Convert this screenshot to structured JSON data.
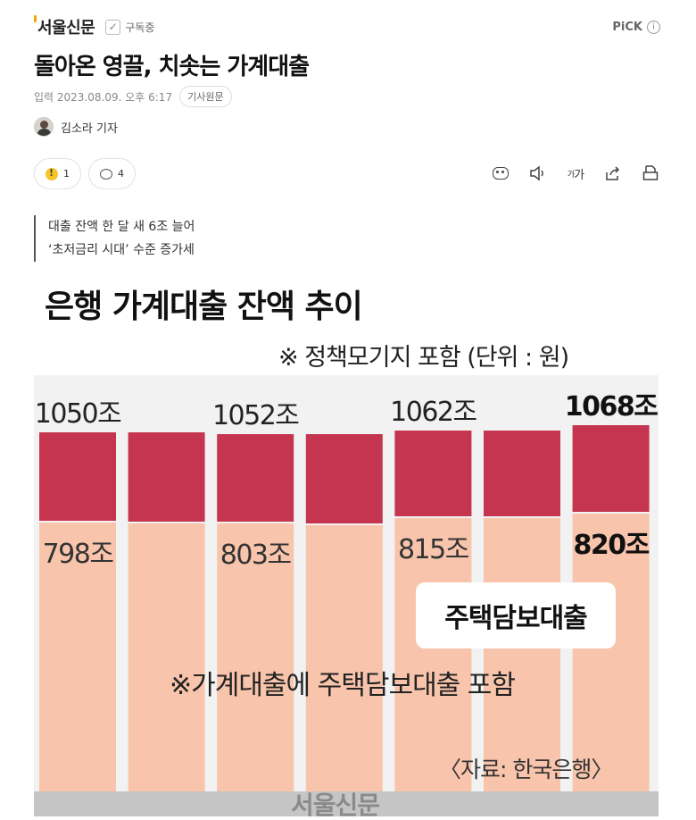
{
  "header": {
    "press_name": "서울신문",
    "subscribe_label": "구독중",
    "pick_label": "PiCK",
    "pick_info": "i"
  },
  "article": {
    "title": "돌아온 영끌, 치솟는 가계대출",
    "date": "입력 2023.08.09. 오후 6:17",
    "original_label": "기사원문",
    "reporter": "김소라 기자",
    "summary": [
      "대출 잔액 한 달 새 6조 늘어",
      "‘초저금리 시대’ 수준 증가세"
    ]
  },
  "reactions": {
    "like_count": "1",
    "comment_count": "4"
  },
  "tools": {
    "font_size_label_small": "가",
    "font_size_label": "가"
  },
  "chart_data": {
    "type": "bar",
    "title": "은행 가계대출 잔액 추이",
    "note": "※ 정책모기지 포함 (단위 : 원)",
    "series": [
      {
        "name": "가계대출",
        "color": "#c6354f",
        "values": [
          1050,
          null,
          1052,
          null,
          1062,
          null,
          1068
        ]
      },
      {
        "name": "주택담보대출",
        "color": "#f8c4ab",
        "values": [
          798,
          null,
          803,
          null,
          815,
          null,
          820
        ]
      }
    ],
    "total_labels": [
      "1050조",
      "1052조",
      "1062조",
      "1068조"
    ],
    "mortgage_labels": [
      "798조",
      "803조",
      "815조",
      "820조"
    ],
    "legend_label": "주택담보대출",
    "footnote": "※가계대출에 주택담보대출 포함",
    "source": "〈자료: 한국은행〉",
    "watermark": "서울신문"
  }
}
